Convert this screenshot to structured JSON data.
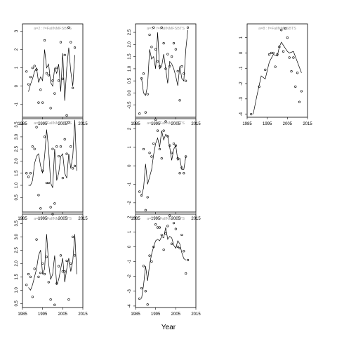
{
  "figure": {
    "xlabel": "Year"
  },
  "chart_data": [
    {
      "type": "line",
      "title": "a=2 : f=FallNMFSBTS",
      "xlim": [
        1985,
        2015
      ],
      "ylim": [
        -1.7,
        3.4
      ],
      "xticks": [
        1985,
        1995,
        2005,
        2015
      ],
      "xtick_labels": [
        "1985",
        "1995",
        "2005",
        "2015"
      ],
      "yticks": [
        -1,
        0,
        1,
        2,
        3
      ],
      "ytick_labels": [
        "-1",
        "0",
        "1",
        "2",
        "3"
      ],
      "fit": {
        "x": [
          1988,
          1989,
          1990,
          1991,
          1992,
          1993,
          1994,
          1995,
          1996,
          1997,
          1998,
          1999,
          2000,
          2001,
          2002,
          2003,
          2004,
          2005,
          2006,
          2007,
          2008,
          2009,
          2010,
          2011,
          2012
        ],
        "y": [
          -0.3,
          0.1,
          0.4,
          0.8,
          1.0,
          0.2,
          0.5,
          0.3,
          2.0,
          1.0,
          1.2,
          0.2,
          0.0,
          1.0,
          0.7,
          1.2,
          -0.3,
          1.8,
          -0.8,
          1.0,
          2.1,
          0.8,
          0.0,
          1.7,
          null
        ]
      },
      "observed": {
        "x": [
          1987,
          1988,
          1989,
          1990,
          1991,
          1992,
          1993,
          1994,
          1995,
          1996,
          1997,
          1998,
          1999,
          2000,
          2001,
          2002,
          2003,
          2004,
          2005,
          2006,
          2007,
          2008,
          2009,
          2010,
          2011
        ],
        "y": [
          0.8,
          0.1,
          0.5,
          1.0,
          1.1,
          0.9,
          -0.9,
          -0.2,
          -0.9,
          2.5,
          0.7,
          0.6,
          -1.2,
          0.3,
          -0.4,
          1.0,
          0.3,
          2.4,
          0.4,
          1.7,
          -1.6,
          3.2,
          2.4,
          -0.1,
          2.1
        ]
      }
    },
    {
      "type": "line",
      "title": "a=5 : f=FallNMFSBTS",
      "xlim": [
        1985,
        2015
      ],
      "ylim": [
        -1.0,
        2.85
      ],
      "xticks": [
        1985,
        1995,
        2005,
        2015
      ],
      "xtick_labels": [
        "1985",
        "1995",
        "2005",
        "2015"
      ],
      "yticks": [
        -0.5,
        0.0,
        0.5,
        1.0,
        1.5,
        2.0,
        2.5
      ],
      "ytick_labels": [
        "-0.5",
        "0.0",
        "0.5",
        "1.0",
        "1.5",
        "2.0",
        "2.5"
      ],
      "fit": {
        "x": [
          1988,
          1989,
          1990,
          1991,
          1992,
          1993,
          1994,
          1995,
          1996,
          1997,
          1998,
          1999,
          2000,
          2001,
          2002,
          2003,
          2004,
          2005,
          2006,
          2007,
          2008,
          2009,
          2010,
          2011,
          2012
        ],
        "y": [
          0.6,
          0.0,
          -0.1,
          0.3,
          1.8,
          1.4,
          1.5,
          1.0,
          2.5,
          1.0,
          1.1,
          1.6,
          1.0,
          0.4,
          1.3,
          1.2,
          1.0,
          0.7,
          0.3,
          1.1,
          0.6,
          0.5,
          1.8,
          2.6,
          null
        ]
      },
      "observed": {
        "x": [
          1987,
          1988,
          1989,
          1990,
          1991,
          1992,
          1993,
          1994,
          1995,
          1996,
          1997,
          1998,
          1999,
          2000,
          2001,
          2002,
          2003,
          2004,
          2005,
          2006,
          2007,
          2008,
          2009,
          2010,
          2011
        ],
        "y": [
          -0.85,
          0.6,
          0.8,
          -0.8,
          -0.05,
          2.4,
          1.9,
          2.7,
          1.8,
          1.3,
          1.1,
          2.7,
          2.05,
          1.0,
          1.6,
          1.1,
          1.5,
          2.05,
          1.8,
          0.9,
          -0.3,
          1.1,
          0.8,
          0.5,
          2.7
        ]
      }
    },
    {
      "type": "line",
      "title": "a=8 : f=FallNMFSBTS",
      "xlim": [
        1985,
        2015
      ],
      "ylim": [
        -4.2,
        1.9
      ],
      "xticks": [
        1985,
        1995,
        2005,
        2015
      ],
      "xtick_labels": [
        "1985",
        "1995",
        "2005",
        "2015"
      ],
      "yticks": [
        -4,
        -3,
        -2,
        -1,
        0,
        1
      ],
      "ytick_labels": [
        "-4",
        "-3",
        "-2",
        "-1",
        "0",
        "1"
      ],
      "fit": {
        "x": [
          1988,
          1990,
          1992,
          1994,
          1996,
          1998,
          2000,
          2001,
          2002,
          2004,
          2005,
          2006,
          2008,
          2010,
          2012
        ],
        "y": [
          -4.0,
          -2.7,
          -1.5,
          -1.7,
          -0.6,
          -0.1,
          -0.2,
          0.4,
          0.7,
          0.3,
          0.1,
          0.0,
          0.1,
          -0.6,
          -1.3
        ]
      },
      "observed": {
        "x": [
          1987,
          1991,
          1994,
          1996,
          1997,
          1998,
          1999,
          2000,
          2001,
          2002,
          2003,
          2004,
          2005,
          2006,
          2007,
          2008,
          2009,
          2010,
          2011,
          2012
        ],
        "y": [
          -4.0,
          -2.2,
          -1.1,
          -0.1,
          0.0,
          0.0,
          -0.9,
          -0.1,
          0.4,
          1.5,
          0.1,
          1.6,
          1.0,
          -0.3,
          -1.2,
          -0.3,
          -2.2,
          -1.3,
          -3.2,
          -2.5
        ]
      }
    },
    {
      "type": "line",
      "title": "a=3 : f=FallNMFSBTS",
      "xlim": [
        1985,
        2015
      ],
      "ylim": [
        -0.1,
        3.75
      ],
      "xticks": [
        1985,
        1995,
        2005,
        2015
      ],
      "xtick_labels": [
        "1985",
        "1995",
        "2005",
        "2015"
      ],
      "yticks": [
        0.5,
        1.0,
        1.5,
        2.0,
        2.5,
        3.0,
        3.5
      ],
      "ytick_labels": [
        "0.5",
        "1.0",
        "1.5",
        "2.0",
        "2.5",
        "3.0",
        "3.5"
      ],
      "fit": {
        "x": [
          1988,
          1989,
          1990,
          1991,
          1992,
          1993,
          1994,
          1995,
          1996,
          1997,
          1998,
          1999,
          2000,
          2001,
          2002,
          2003,
          2004,
          2005,
          2006,
          2007,
          2008,
          2009,
          2010,
          2011,
          2012
        ],
        "y": [
          1.0,
          1.0,
          1.2,
          1.9,
          2.2,
          2.3,
          1.8,
          1.5,
          2.2,
          3.3,
          2.5,
          1.1,
          0.9,
          2.5,
          1.2,
          1.5,
          2.2,
          2.3,
          1.5,
          1.3,
          2.3,
          1.7,
          2.2,
          3.7,
          1.6
        ]
      },
      "observed": {
        "x": [
          1987,
          1988,
          1989,
          1990,
          1991,
          1992,
          1993,
          1994,
          1995,
          1996,
          1997,
          1998,
          1999,
          2000,
          2001,
          2002,
          2003,
          2004,
          2005,
          2006,
          2007,
          2008,
          2009,
          2010,
          2011
        ],
        "y": [
          1.5,
          1.35,
          1.5,
          2.6,
          2.5,
          3.4,
          0.6,
          0.05,
          1.6,
          3.0,
          1.1,
          1.1,
          0.1,
          2.5,
          0.25,
          2.6,
          2.2,
          2.6,
          1.3,
          2.9,
          2.3,
          3.6,
          2.6,
          1.7,
          1.8
        ]
      }
    },
    {
      "type": "line",
      "title": "a=6 : f=FallNMFSBTS",
      "xlim": [
        1985,
        2015
      ],
      "ylim": [
        -2.5,
        2.55
      ],
      "xticks": [
        1985,
        1995,
        2005,
        2015
      ],
      "xtick_labels": [
        "1985",
        "1995",
        "2005",
        "2015"
      ],
      "yticks": [
        -2,
        -1,
        0,
        1,
        2
      ],
      "ytick_labels": [
        "-2",
        "-1",
        "0",
        "1",
        "2"
      ],
      "fit": {
        "x": [
          1988,
          1989,
          1990,
          1991,
          1992,
          1993,
          1994,
          1995,
          1996,
          1997,
          1998,
          1999,
          2000,
          2001,
          2002,
          2003,
          2004,
          2005,
          2006,
          2007,
          2008,
          2009,
          2010,
          2011,
          2012
        ],
        "y": [
          -1.6,
          -1.2,
          0.1,
          -1.0,
          -0.6,
          -0.2,
          0.6,
          1.2,
          1.5,
          1.0,
          1.9,
          1.4,
          1.7,
          1.6,
          1.0,
          0.3,
          0.9,
          1.1,
          0.3,
          0.4,
          -0.2,
          -0.2,
          0.5,
          null,
          null
        ]
      },
      "observed": {
        "x": [
          1987,
          1988,
          1989,
          1990,
          1991,
          1992,
          1993,
          1994,
          1995,
          1996,
          1997,
          1998,
          1999,
          2000,
          2001,
          2002,
          2003,
          2004,
          2005,
          2006,
          2007,
          2008,
          2009,
          2010,
          2011
        ],
        "y": [
          -1.4,
          -1.6,
          0.9,
          -2.4,
          -1.7,
          0.7,
          0.5,
          1.2,
          2.5,
          1.9,
          0.9,
          0.4,
          1.9,
          2.4,
          1.6,
          1.1,
          0.7,
          1.2,
          1.1,
          0.4,
          -0.4,
          -0.1,
          -0.4,
          0.5,
          null
        ]
      }
    },
    {
      "type": "line",
      "title": "a=4 : f=FallNMFSBTS",
      "xlim": [
        1985,
        2015
      ],
      "ylim": [
        0.35,
        3.85
      ],
      "xticks": [
        1985,
        1995,
        2005,
        2015
      ],
      "xtick_labels": [
        "1985",
        "1995",
        "2005",
        "2015"
      ],
      "yticks": [
        0.5,
        1.0,
        1.5,
        2.0,
        2.5,
        3.0,
        3.5
      ],
      "ytick_labels": [
        "0.5",
        "1.0",
        "1.5",
        "2.0",
        "2.5",
        "3.0",
        "3.5"
      ],
      "fit": {
        "x": [
          1988,
          1989,
          1990,
          1991,
          1992,
          1993,
          1994,
          1995,
          1996,
          1997,
          1998,
          1999,
          2000,
          2001,
          2002,
          2003,
          2004,
          2005,
          2006,
          2007,
          2008,
          2009,
          2010,
          2011,
          2012
        ],
        "y": [
          1.1,
          1.0,
          1.2,
          1.5,
          1.8,
          2.3,
          2.5,
          1.6,
          1.8,
          3.1,
          2.0,
          1.4,
          1.6,
          2.3,
          1.2,
          1.4,
          1.8,
          2.2,
          1.3,
          1.8,
          2.2,
          1.7,
          2.1,
          3.1,
          1.6
        ]
      },
      "observed": {
        "x": [
          1987,
          1988,
          1989,
          1990,
          1991,
          1992,
          1993,
          1994,
          1995,
          1996,
          1997,
          1998,
          1999,
          2000,
          2001,
          2002,
          2003,
          2004,
          2005,
          2006,
          2007,
          2008,
          2009,
          2010,
          2011
        ],
        "y": [
          1.2,
          1.6,
          1.5,
          0.75,
          1.8,
          2.9,
          1.5,
          1.65,
          2.0,
          1.6,
          2.25,
          1.3,
          0.65,
          3.85,
          0.45,
          1.25,
          1.9,
          2.3,
          1.7,
          1.7,
          2.1,
          0.65,
          2.0,
          3.0,
          2.3
        ]
      }
    },
    {
      "type": "line",
      "title": "a=7 : f=FallNMFSBTS",
      "xlim": [
        1985,
        2015
      ],
      "ylim": [
        -4.1,
        2.2
      ],
      "xticks": [
        1985,
        1995,
        2005,
        2015
      ],
      "xtick_labels": [
        "1985",
        "1995",
        "2005",
        "2015"
      ],
      "yticks": [
        -4,
        -3,
        -2,
        -1,
        0,
        1,
        2
      ],
      "ytick_labels": [
        "-4",
        "-3",
        "-2",
        "-1",
        "0",
        "1",
        "2"
      ],
      "fit": {
        "x": [
          1988,
          1989,
          1990,
          1991,
          1992,
          1993,
          1994,
          1995,
          1996,
          1997,
          1998,
          1999,
          2000,
          2001,
          2002,
          2003,
          2004,
          2005,
          2006,
          2007,
          2008,
          2009,
          2010,
          2011,
          2012
        ],
        "y": [
          -3.5,
          -2.6,
          -1.3,
          -2.3,
          -1.2,
          -0.5,
          0.0,
          0.4,
          0.5,
          0.4,
          0.7,
          0.6,
          1.3,
          0.5,
          0.7,
          0.6,
          0.1,
          -0.1,
          0.4,
          0.2,
          -0.4,
          -0.8,
          -0.9,
          null,
          null
        ]
      },
      "observed": {
        "x": [
          1987,
          1988,
          1989,
          1990,
          1991,
          1992,
          1993,
          1994,
          1995,
          1996,
          1997,
          1998,
          1999,
          2000,
          2001,
          2002,
          2003,
          2004,
          2005,
          2006,
          2007,
          2008,
          2009,
          2010,
          2011
        ],
        "y": [
          -3.5,
          -2.8,
          -1.3,
          -3.0,
          -3.9,
          -0.6,
          -1.0,
          0.0,
          1.5,
          1.3,
          1.3,
          0.8,
          -0.2,
          0.9,
          1.4,
          2.1,
          0.2,
          1.6,
          1.2,
          0.0,
          -0.1,
          0.8,
          -0.3,
          -1.8,
          -0.9
        ]
      }
    }
  ]
}
